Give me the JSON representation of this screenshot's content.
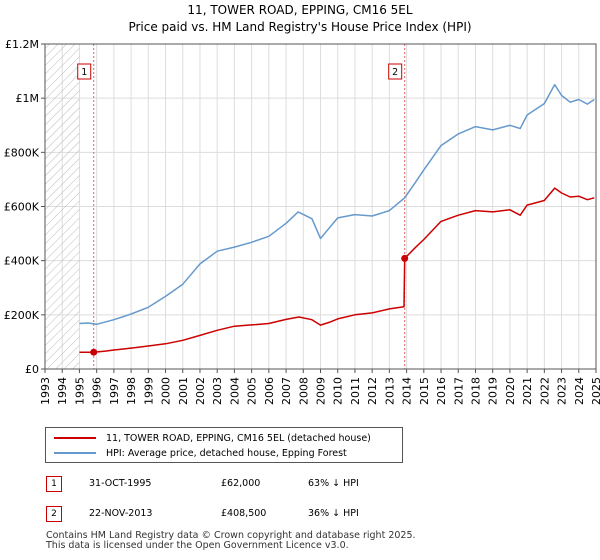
{
  "title_line1": "11, TOWER ROAD, EPPING, CM16 5EL",
  "title_line2": "Price paid vs. HM Land Registry's House Price Index (HPI)",
  "chart_data": {
    "type": "line",
    "xlim": [
      1993,
      2025
    ],
    "ylim": [
      0,
      1200000
    ],
    "x_ticks": [
      "1993",
      "1994",
      "1995",
      "1996",
      "1997",
      "1998",
      "1999",
      "2000",
      "2001",
      "2002",
      "2003",
      "2004",
      "2005",
      "2006",
      "2007",
      "2008",
      "2009",
      "2010",
      "2011",
      "2012",
      "2013",
      "2014",
      "2015",
      "2016",
      "2017",
      "2018",
      "2019",
      "2020",
      "2021",
      "2022",
      "2023",
      "2024",
      "2025"
    ],
    "y_ticks": [
      {
        "value": 0,
        "label": "£0"
      },
      {
        "value": 200000,
        "label": "£200K"
      },
      {
        "value": 400000,
        "label": "£400K"
      },
      {
        "value": 600000,
        "label": "£600K"
      },
      {
        "value": 800000,
        "label": "£800K"
      },
      {
        "value": 1000000,
        "label": "£1M"
      },
      {
        "value": 1200000,
        "label": "£1.2M"
      }
    ],
    "hatch_until": 1995,
    "series": [
      {
        "name": "11, TOWER ROAD, EPPING, CM16 5EL (detached house)",
        "color": "#cc0000",
        "points": [
          [
            1995.0,
            62000
          ],
          [
            1995.83,
            62000
          ],
          [
            1996.5,
            66000
          ],
          [
            1997,
            70000
          ],
          [
            1998,
            77000
          ],
          [
            1999,
            85000
          ],
          [
            2000,
            93000
          ],
          [
            2001,
            106000
          ],
          [
            2002,
            124000
          ],
          [
            2003,
            143000
          ],
          [
            2004,
            158000
          ],
          [
            2005,
            163000
          ],
          [
            2006,
            168000
          ],
          [
            2007,
            183000
          ],
          [
            2007.75,
            192000
          ],
          [
            2008.5,
            182000
          ],
          [
            2009.0,
            162000
          ],
          [
            2009.5,
            172000
          ],
          [
            2010,
            185000
          ],
          [
            2011,
            200000
          ],
          [
            2012,
            207000
          ],
          [
            2013.0,
            222000
          ],
          [
            2013.85,
            230000
          ],
          [
            2013.89,
            408500
          ],
          [
            2014.5,
            448000
          ],
          [
            2015,
            478000
          ],
          [
            2016,
            545000
          ],
          [
            2017,
            568000
          ],
          [
            2018,
            585000
          ],
          [
            2019,
            580000
          ],
          [
            2020,
            588000
          ],
          [
            2020.6,
            568000
          ],
          [
            2021,
            605000
          ],
          [
            2022,
            622000
          ],
          [
            2022.6,
            668000
          ],
          [
            2023,
            650000
          ],
          [
            2023.5,
            635000
          ],
          [
            2024,
            638000
          ],
          [
            2024.5,
            625000
          ],
          [
            2024.9,
            632000
          ]
        ]
      },
      {
        "name": "HPI: Average price, detached house, Epping Forest",
        "color": "#6699cc",
        "points": [
          [
            1995.0,
            168000
          ],
          [
            1995.5,
            170000
          ],
          [
            1996,
            165000
          ],
          [
            1997,
            182000
          ],
          [
            1998,
            203000
          ],
          [
            1999,
            228000
          ],
          [
            2000,
            268000
          ],
          [
            2001,
            313000
          ],
          [
            2002,
            388000
          ],
          [
            2003,
            435000
          ],
          [
            2004,
            450000
          ],
          [
            2005,
            468000
          ],
          [
            2006,
            490000
          ],
          [
            2007,
            538000
          ],
          [
            2007.7,
            580000
          ],
          [
            2008.5,
            555000
          ],
          [
            2009.0,
            482000
          ],
          [
            2009.5,
            520000
          ],
          [
            2010,
            558000
          ],
          [
            2011,
            570000
          ],
          [
            2012,
            565000
          ],
          [
            2013,
            585000
          ],
          [
            2013.89,
            632000
          ],
          [
            2014.5,
            688000
          ],
          [
            2015,
            735000
          ],
          [
            2016,
            825000
          ],
          [
            2017,
            868000
          ],
          [
            2018,
            895000
          ],
          [
            2019,
            883000
          ],
          [
            2020,
            900000
          ],
          [
            2020.6,
            888000
          ],
          [
            2021,
            938000
          ],
          [
            2022,
            980000
          ],
          [
            2022.6,
            1050000
          ],
          [
            2023,
            1010000
          ],
          [
            2023.5,
            985000
          ],
          [
            2024,
            995000
          ],
          [
            2024.5,
            978000
          ],
          [
            2024.9,
            995000
          ]
        ]
      }
    ],
    "sales": [
      {
        "num": "1",
        "x": 1995.83,
        "y": 62000
      },
      {
        "num": "2",
        "x": 2013.89,
        "y": 408500
      }
    ]
  },
  "legend": [
    {
      "label": "11, TOWER ROAD, EPPING, CM16 5EL (detached house)",
      "color": "#cc0000"
    },
    {
      "label": "HPI: Average price, detached house, Epping Forest",
      "color": "#6699cc"
    }
  ],
  "transactions": [
    {
      "num": "1",
      "date": "31-OCT-1995",
      "price": "£62,000",
      "hpi": "63% ↓ HPI"
    },
    {
      "num": "2",
      "date": "22-NOV-2013",
      "price": "£408,500",
      "hpi": "36% ↓ HPI"
    }
  ],
  "footer_line1": "Contains HM Land Registry data © Crown copyright and database right 2025.",
  "footer_line2": "This data is licensed under the Open Government Licence v3.0."
}
